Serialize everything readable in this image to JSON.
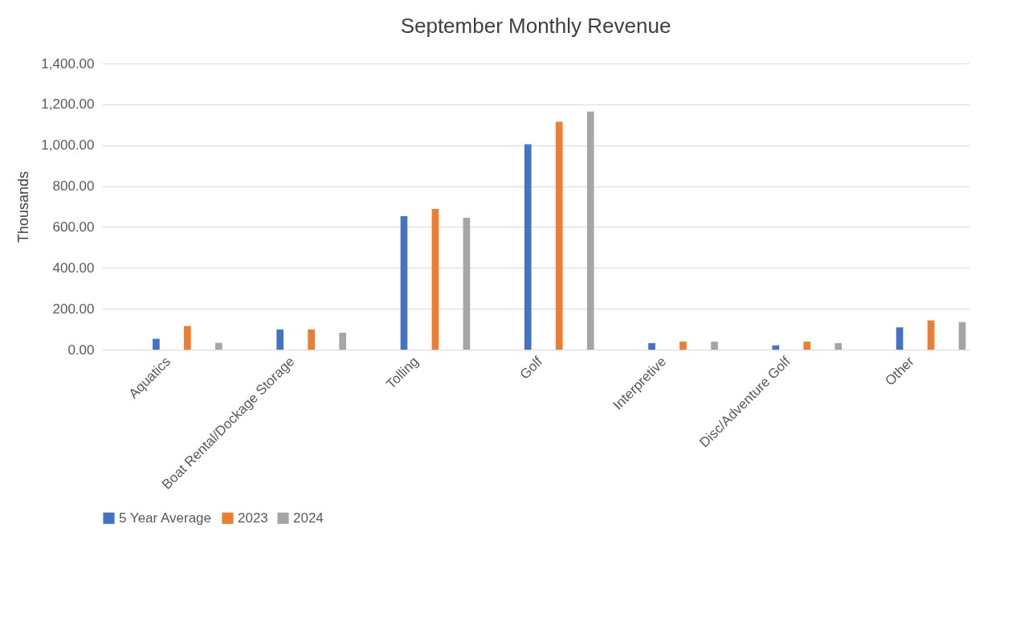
{
  "chart_data": {
    "type": "bar",
    "title": "September Monthly Revenue",
    "ylabel": "Thousands",
    "categories": [
      "Aquatics",
      "Boat Rental/Dockage Storage",
      "Tolling",
      "Golf",
      "Interpretive",
      "Disc/Adventure Golf",
      "Other"
    ],
    "series": [
      {
        "name": "5 Year Average",
        "color": "#4472c4",
        "values": [
          53,
          99,
          653,
          1005,
          32,
          21,
          109
        ]
      },
      {
        "name": "2023",
        "color": "#ed7d31",
        "values": [
          116,
          99,
          688,
          1115,
          39,
          39,
          143
        ]
      },
      {
        "name": "2024",
        "color": "#a5a5a5",
        "values": [
          33,
          83,
          645,
          1165,
          39,
          32,
          135
        ]
      }
    ],
    "ylim": [
      0,
      1400
    ],
    "yticks": [
      {
        "value": 0,
        "label": "0.00"
      },
      {
        "value": 200,
        "label": "200.00"
      },
      {
        "value": 400,
        "label": "400.00"
      },
      {
        "value": 600,
        "label": "600.00"
      },
      {
        "value": 800,
        "label": "800.00"
      },
      {
        "value": 1000,
        "label": "1,000.00"
      },
      {
        "value": 1200,
        "label": "1,200.00"
      },
      {
        "value": 1400,
        "label": "1,400.00"
      }
    ],
    "grid": "y",
    "legend": "bottom"
  }
}
